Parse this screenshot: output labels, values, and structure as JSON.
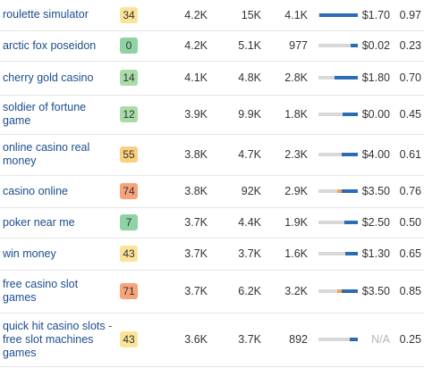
{
  "rows": [
    {
      "keyword": "roulette simulator",
      "kd": "34",
      "kd_color": "#fbe49a",
      "volume": "4.2K",
      "clicks": "15K",
      "results": "4.1K",
      "bar": 0.98,
      "accent": 0,
      "cpc": "$1.70",
      "comp": "0.97"
    },
    {
      "keyword": "arctic fox poseidon",
      "kd": "0",
      "kd_color": "#8fd3a3",
      "volume": "4.2K",
      "clicks": "5.1K",
      "results": "977",
      "bar": 0.18,
      "accent": 0,
      "cpc": "$0.02",
      "comp": "0.23"
    },
    {
      "keyword": "cherry gold casino",
      "kd": "14",
      "kd_color": "#a9dca9",
      "volume": "4.1K",
      "clicks": "4.8K",
      "results": "2.8K",
      "bar": 0.58,
      "accent": 0,
      "cpc": "$1.80",
      "comp": "0.70"
    },
    {
      "keyword": "soldier of fortune game",
      "kd": "12",
      "kd_color": "#a9dca9",
      "volume": "3.9K",
      "clicks": "9.9K",
      "results": "1.8K",
      "bar": 0.38,
      "accent": 0,
      "cpc": "$0.00",
      "comp": "0.45"
    },
    {
      "keyword": "online casino real money",
      "kd": "55",
      "kd_color": "#fbd07c",
      "volume": "3.8K",
      "clicks": "4.7K",
      "results": "2.3K",
      "bar": 0.4,
      "accent": 0,
      "cpc": "$4.00",
      "comp": "0.61"
    },
    {
      "keyword": "casino online",
      "kd": "74",
      "kd_color": "#f7a47a",
      "volume": "3.8K",
      "clicks": "92K",
      "results": "2.9K",
      "bar": 0.45,
      "accent": 1,
      "cpc": "$3.50",
      "comp": "0.76"
    },
    {
      "keyword": "poker near me",
      "kd": "7",
      "kd_color": "#8fd3a3",
      "volume": "3.7K",
      "clicks": "4.4K",
      "results": "1.9K",
      "bar": 0.33,
      "accent": 0,
      "cpc": "$2.50",
      "comp": "0.50"
    },
    {
      "keyword": "win money",
      "kd": "43",
      "kd_color": "#fbe49a",
      "volume": "3.7K",
      "clicks": "3.7K",
      "results": "1.6K",
      "bar": 0.32,
      "accent": 0,
      "cpc": "$1.30",
      "comp": "0.65"
    },
    {
      "keyword": "free casino slot games",
      "kd": "71",
      "kd_color": "#f7a47a",
      "volume": "3.7K",
      "clicks": "6.2K",
      "results": "3.2K",
      "bar": 0.45,
      "accent": 1,
      "cpc": "$3.50",
      "comp": "0.85"
    },
    {
      "keyword": "quick hit casino slots - free slot machines games",
      "kd": "43",
      "kd_color": "#fbe49a",
      "volume": "3.6K",
      "clicks": "3.7K",
      "results": "892",
      "bar": 0.2,
      "accent": 0,
      "cpc": "N/A",
      "comp": "0.25"
    }
  ]
}
